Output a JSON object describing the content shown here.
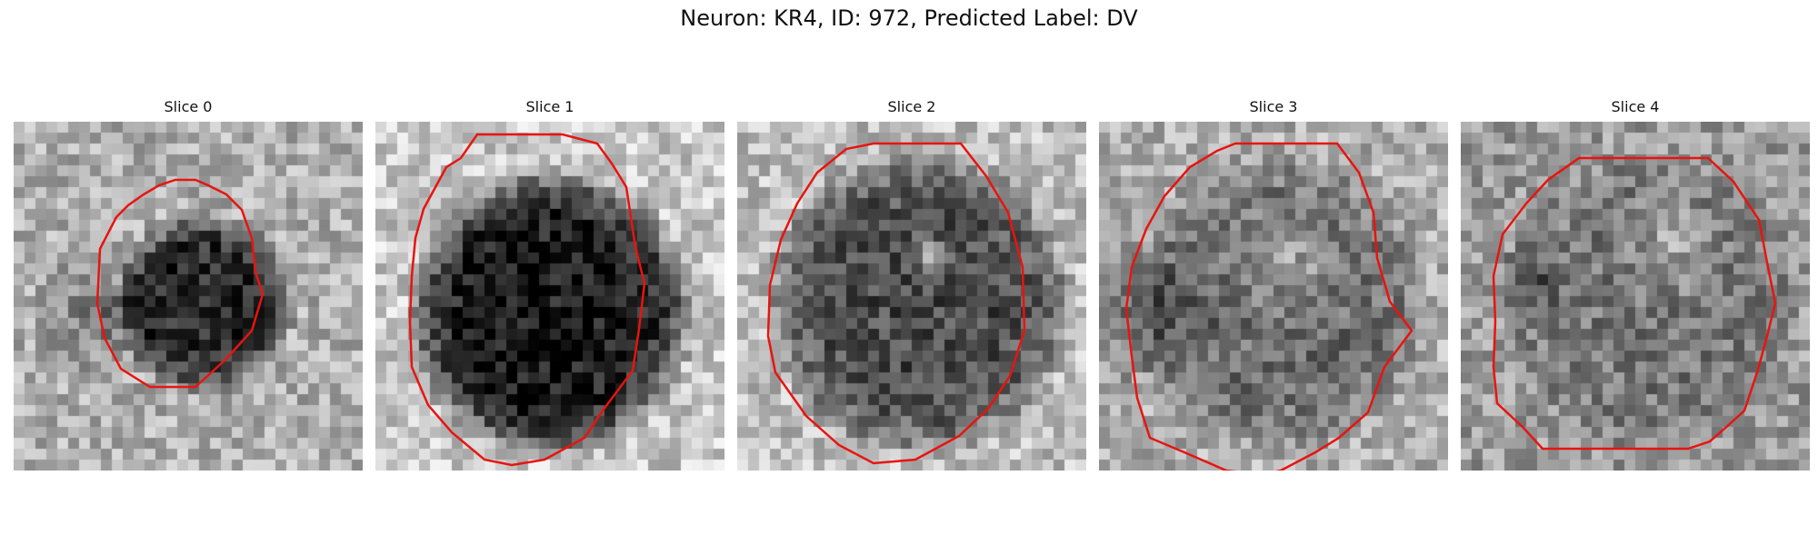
{
  "figure": {
    "title": "Neuron: KR4, ID: 972, Predicted Label: DV"
  },
  "colors": {
    "contour": "#e8140f",
    "background": "#ffffff"
  },
  "panels": [
    {
      "title": "Slice 0"
    },
    {
      "title": "Slice 1"
    },
    {
      "title": "Slice 2"
    },
    {
      "title": "Slice 3"
    },
    {
      "title": "Slice 4"
    }
  ]
}
